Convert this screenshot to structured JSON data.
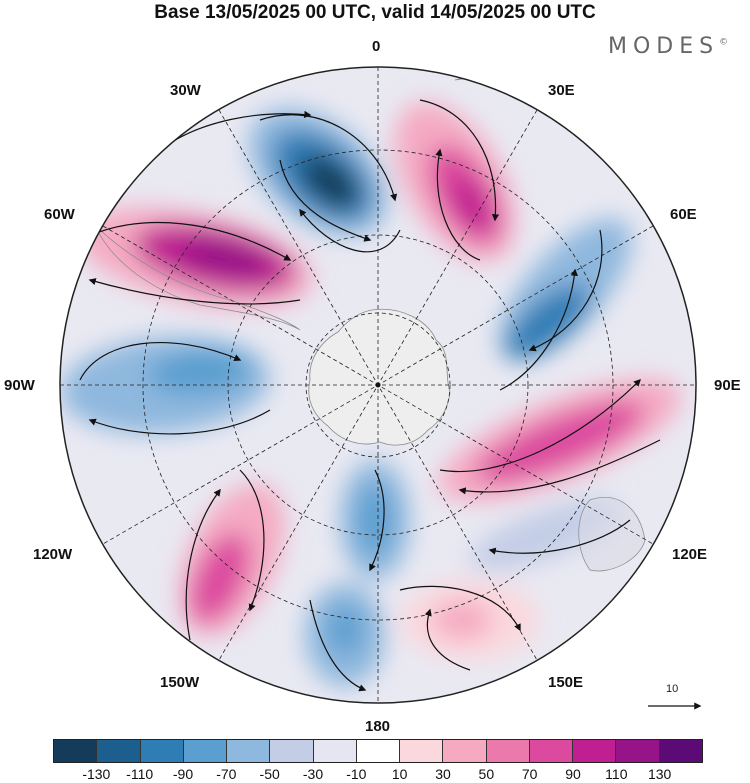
{
  "header": {
    "title": "Base 13/05/2025 00 UTC, valid 14/05/2025 00 UTC",
    "brand": "MODES",
    "brand_mark": "©"
  },
  "map": {
    "projection": "south-polar-stereographic",
    "longitude_labels": [
      "0",
      "30E",
      "60E",
      "90E",
      "120E",
      "150E",
      "180",
      "150W",
      "120W",
      "90W",
      "60W",
      "30W"
    ],
    "wind_reference_label": "10",
    "anomaly_centers": [
      {
        "lon": "15W",
        "sign": "negative",
        "magnitude": -120
      },
      {
        "lon": "20E",
        "sign": "positive",
        "magnitude": 100
      },
      {
        "lon": "55E",
        "sign": "negative",
        "magnitude": -70
      },
      {
        "lon": "100E",
        "sign": "positive",
        "magnitude": 90
      },
      {
        "lon": "110E",
        "sign": "negative",
        "magnitude": -40
      },
      {
        "lon": "155E",
        "sign": "positive",
        "magnitude": 50
      },
      {
        "lon": "175W",
        "sign": "negative",
        "magnitude": -60
      },
      {
        "lon": "140W",
        "sign": "positive",
        "magnitude": 80
      },
      {
        "lon": "95W",
        "sign": "negative",
        "magnitude": -60
      },
      {
        "lon": "55W",
        "sign": "positive",
        "magnitude": 120
      }
    ]
  },
  "colorbar": {
    "tick_labels": [
      "-130",
      "-110",
      "-90",
      "-70",
      "-50",
      "-30",
      "-10",
      "10",
      "30",
      "50",
      "70",
      "90",
      "110",
      "130"
    ],
    "colors": [
      "#143c5a",
      "#1c5f8f",
      "#2f7db5",
      "#5a9fd0",
      "#8fb8de",
      "#c3cde6",
      "#e6e6f2",
      "#ffffff",
      "#fbd8de",
      "#f5aac2",
      "#ec79ac",
      "#dc4a9f",
      "#bf1f91",
      "#961487",
      "#5c0a75"
    ]
  }
}
